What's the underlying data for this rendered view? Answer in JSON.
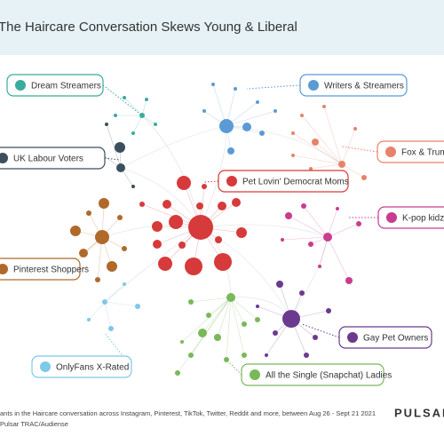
{
  "header": {
    "title": "The Haircare Conversation Skews Young & Liberal"
  },
  "clusters": [
    {
      "label": "Dream Streamers"
    },
    {
      "label": "Writers & Streamers"
    },
    {
      "label": "Fox & Trump"
    },
    {
      "label": "UK Labour Voters"
    },
    {
      "label": "Pet Lovin' Democrat Moms"
    },
    {
      "label": "K-pop kidz"
    },
    {
      "label": "Pinterest Shoppers"
    },
    {
      "label": "Gay Pet Owners"
    },
    {
      "label": "OnlyFans X-Rated"
    },
    {
      "label": "All the Single (Snapchat) Ladies"
    }
  ],
  "footer": {
    "note": "ants in the Haircare conversation across  Instagram, Pinterest, TikTok, Twitter, Reddit and more, between Aug 26 - Sept 21 2021",
    "source": "Pulsar TRAC/Audiense",
    "brand": "PULSAR"
  }
}
